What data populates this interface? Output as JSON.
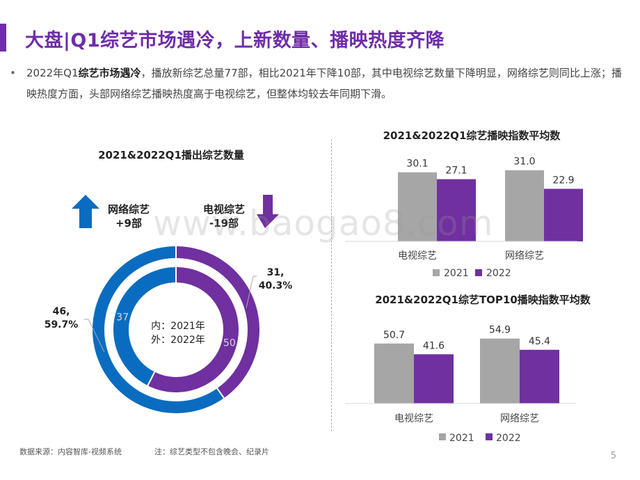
{
  "header": {
    "title": "大盘|Q1综艺市场遇冷，上新数量、播映热度齐降"
  },
  "summary": {
    "bullet": "•",
    "prefix": "2022年Q1",
    "bold": "综艺市场遇冷",
    "rest": "，播放新综艺总量77部，相比2021年下降10部，其中电视综艺数量下降明显，网络综艺则同比上涨；播映热度方面，头部网络综艺播映热度高于电视综艺，但整体均较去年同期下滑。"
  },
  "watermark": "www.baogao8.com",
  "footer": {
    "source": "数据来源：内容智库-视频系统",
    "note": "注：综艺类型不包含晚会、纪录片",
    "page": "5"
  },
  "colors": {
    "purple": "#7030a0",
    "blue": "#0a6cc0",
    "gray": "#a6a6a6",
    "accent": "#6f2da8"
  },
  "chart_data": [
    {
      "type": "pie",
      "title": "2021&2022Q1播出综艺数量",
      "center_label_inner": "内：2021年",
      "center_label_outer": "外：2022年",
      "indicators": [
        {
          "name": "网络综艺",
          "change": "+9部",
          "direction": "up",
          "icon": "arrow-up-icon"
        },
        {
          "name": "电视综艺",
          "change": "-19部",
          "direction": "down",
          "icon": "arrow-down-icon"
        }
      ],
      "inner_ring": {
        "year": "2021",
        "slices": [
          {
            "name": "电视综艺",
            "value": 50
          },
          {
            "name": "网络综艺",
            "value": 37
          }
        ]
      },
      "outer_ring": {
        "year": "2022",
        "slices": [
          {
            "name": "电视综艺",
            "value": 31,
            "label": "31,",
            "pct": "40.3%"
          },
          {
            "name": "网络综艺",
            "value": 46,
            "label": "46,",
            "pct": "59.7%"
          }
        ]
      }
    },
    {
      "type": "bar",
      "title": "2021&2022Q1综艺播映指数平均数",
      "categories": [
        "电视综艺",
        "网络综艺"
      ],
      "series": [
        {
          "name": "2021",
          "values": [
            30.1,
            31.0
          ],
          "labels": [
            "30.1",
            "31.0"
          ]
        },
        {
          "name": "2022",
          "values": [
            27.1,
            22.9
          ],
          "labels": [
            "27.1",
            "22.9"
          ]
        }
      ],
      "ylim": [
        0,
        40
      ]
    },
    {
      "type": "bar",
      "title": "2021&2022Q1综艺TOP10播映指数平均数",
      "categories": [
        "电视综艺",
        "网络综艺"
      ],
      "series": [
        {
          "name": "2021",
          "values": [
            50.7,
            54.9
          ],
          "labels": [
            "50.7",
            "54.9"
          ]
        },
        {
          "name": "2022",
          "values": [
            41.6,
            45.4
          ],
          "labels": [
            "41.6",
            "45.4"
          ]
        }
      ],
      "ylim": [
        0,
        70
      ]
    }
  ]
}
